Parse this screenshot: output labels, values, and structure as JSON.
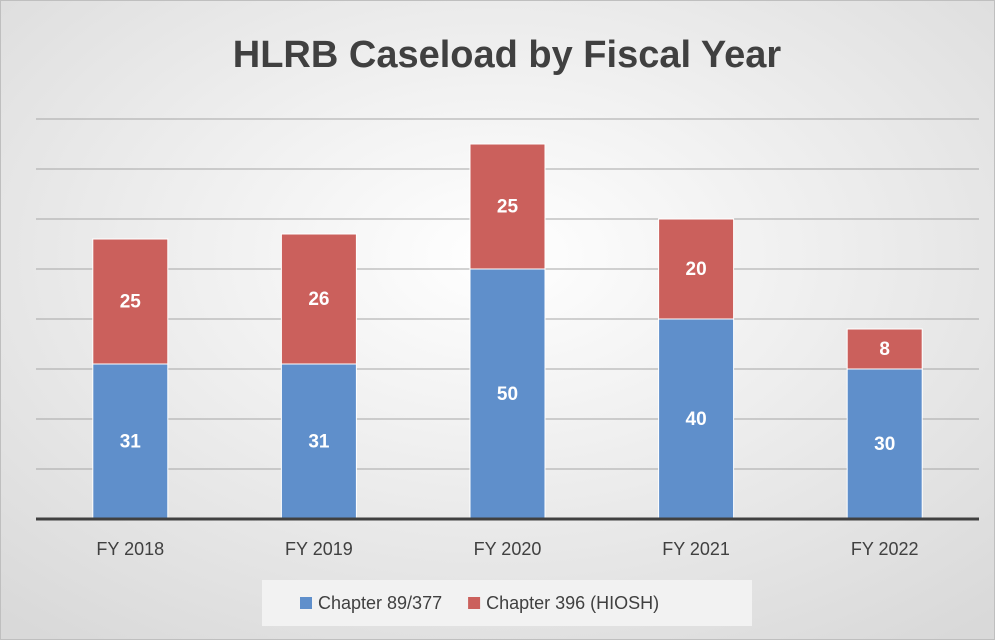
{
  "chart_data": {
    "type": "stacked_bar",
    "title": "HLRB Caseload by Fiscal Year",
    "categories": [
      "FY 2018",
      "FY 2019",
      "FY 2020",
      "FY 2021",
      "FY 2022"
    ],
    "series": [
      {
        "name": "Chapter 89/377",
        "color": "#5f8fcb",
        "values": [
          31,
          31,
          50,
          40,
          30
        ]
      },
      {
        "name": "Chapter 396 (HIOSH)",
        "color": "#cb605c",
        "values": [
          25,
          26,
          25,
          20,
          8
        ]
      }
    ],
    "ylim": [
      0,
      80
    ],
    "yticks": [
      0,
      10,
      20,
      30,
      40,
      50,
      60,
      70,
      80
    ],
    "grid": true,
    "legend": "bottom"
  }
}
